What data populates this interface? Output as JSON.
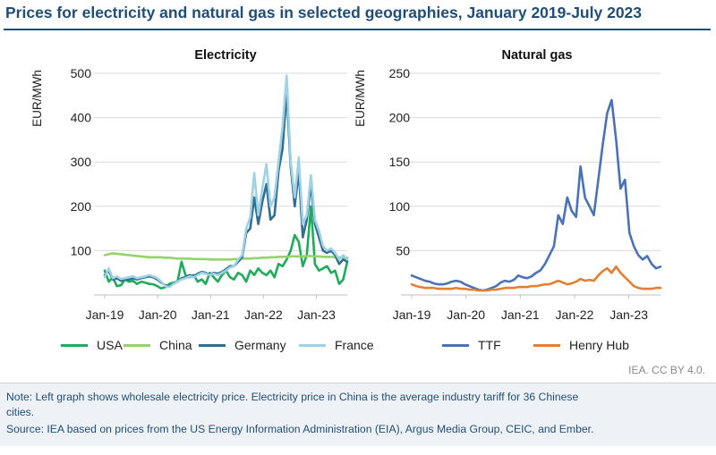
{
  "title": "Prices for electricity and natural gas in selected geographies, January 2019-July 2023",
  "credit": "IEA. CC BY 4.0.",
  "notes": {
    "line1": "Note: Left graph shows wholesale electricity price. Electricity price in China is the average industry tariff for 36 Chinese",
    "line2": "cities.",
    "line3": "Source: IEA based on prices from the US Energy Information Administration (EIA), Argus Media Group, CEIC, and Ember."
  },
  "chart_data": [
    {
      "type": "line",
      "title": "Electricity",
      "ylabel": "EUR/MWh",
      "xlabel": "",
      "ylim": [
        0,
        500
      ],
      "yticks": [
        "100",
        "200",
        "300",
        "400",
        "500"
      ],
      "xticks": [
        "Jan-19",
        "Jan-20",
        "Jan-21",
        "Jan-22",
        "Jan-23"
      ],
      "grid": true,
      "legend": "bottom",
      "x_start": "Jan-19",
      "x_end": "Jul-23",
      "series": [
        {
          "name": "USA",
          "color": "#1eab5a",
          "values": [
            55,
            30,
            40,
            20,
            22,
            35,
            30,
            32,
            25,
            30,
            28,
            25,
            24,
            20,
            15,
            18,
            25,
            28,
            30,
            75,
            45,
            40,
            45,
            30,
            35,
            25,
            50,
            40,
            30,
            45,
            55,
            40,
            35,
            50,
            45,
            30,
            55,
            45,
            60,
            50,
            45,
            55,
            40,
            70,
            65,
            80,
            100,
            135,
            120,
            65,
            90,
            200,
            70,
            55,
            60,
            65,
            50,
            55,
            25,
            35,
            75
          ]
        },
        {
          "name": "China",
          "color": "#94d36b",
          "values": [
            90,
            92,
            94,
            93,
            92,
            91,
            90,
            89,
            88,
            87,
            86,
            85,
            85,
            85,
            85,
            84,
            84,
            83,
            82,
            82,
            82,
            82,
            81,
            81,
            81,
            81,
            80,
            80,
            80,
            80,
            80,
            80,
            81,
            81,
            82,
            82,
            82,
            83,
            83,
            84,
            84,
            85,
            85,
            86,
            86,
            86,
            87,
            87,
            87,
            87,
            88,
            88,
            87,
            87,
            86,
            86,
            86,
            85,
            85,
            84,
            84
          ]
        },
        {
          "name": "Germany",
          "color": "#2f6f8f",
          "values": [
            45,
            55,
            35,
            38,
            32,
            35,
            35,
            38,
            35,
            38,
            40,
            42,
            40,
            35,
            28,
            22,
            20,
            25,
            30,
            38,
            40,
            45,
            42,
            48,
            52,
            50,
            45,
            50,
            48,
            52,
            58,
            65,
            65,
            75,
            85,
            140,
            150,
            220,
            160,
            210,
            250,
            170,
            180,
            280,
            330,
            460,
            290,
            200,
            280,
            130,
            170,
            250,
            160,
            130,
            100,
            95,
            100,
            90,
            70,
            80,
            75
          ]
        },
        {
          "name": "France",
          "color": "#9fd2e6",
          "values": [
            40,
            60,
            38,
            42,
            36,
            38,
            40,
            42,
            38,
            40,
            42,
            45,
            42,
            38,
            30,
            20,
            18,
            25,
            30,
            35,
            38,
            42,
            40,
            45,
            50,
            48,
            45,
            48,
            45,
            50,
            55,
            62,
            65,
            80,
            90,
            150,
            175,
            275,
            180,
            240,
            295,
            200,
            220,
            300,
            380,
            495,
            300,
            220,
            310,
            160,
            180,
            270,
            170,
            145,
            110,
            100,
            105,
            95,
            80,
            90,
            80
          ]
        }
      ]
    },
    {
      "type": "line",
      "title": "Natural gas",
      "ylabel": "EUR/MWh",
      "xlabel": "",
      "ylim": [
        0,
        250
      ],
      "yticks": [
        "50",
        "100",
        "150",
        "200",
        "250"
      ],
      "xticks": [
        "Jan-19",
        "Jan-20",
        "Jan-21",
        "Jan-22",
        "Jan-23"
      ],
      "grid": true,
      "legend": "bottom",
      "x_start": "Jan-19",
      "x_end": "Jul-23",
      "series": [
        {
          "name": "TTF",
          "color": "#4a72b8",
          "values": [
            22,
            20,
            18,
            16,
            15,
            13,
            12,
            12,
            13,
            15,
            16,
            15,
            12,
            10,
            8,
            6,
            5,
            6,
            8,
            10,
            14,
            16,
            15,
            17,
            22,
            20,
            19,
            21,
            25,
            28,
            35,
            45,
            55,
            90,
            80,
            110,
            95,
            88,
            145,
            110,
            100,
            90,
            130,
            170,
            205,
            220,
            175,
            120,
            130,
            70,
            55,
            45,
            40,
            44,
            35,
            30,
            32
          ]
        },
        {
          "name": "Henry Hub",
          "color": "#e67e30",
          "values": [
            12,
            10,
            9,
            8,
            8,
            8,
            7,
            7,
            7,
            7,
            8,
            7,
            7,
            6,
            6,
            5,
            5,
            5,
            6,
            6,
            7,
            8,
            8,
            8,
            9,
            9,
            9,
            10,
            10,
            11,
            12,
            12,
            14,
            16,
            14,
            12,
            13,
            15,
            18,
            16,
            17,
            16,
            22,
            27,
            30,
            25,
            32,
            25,
            20,
            15,
            10,
            8,
            7,
            7,
            7,
            8,
            8
          ]
        }
      ]
    }
  ]
}
